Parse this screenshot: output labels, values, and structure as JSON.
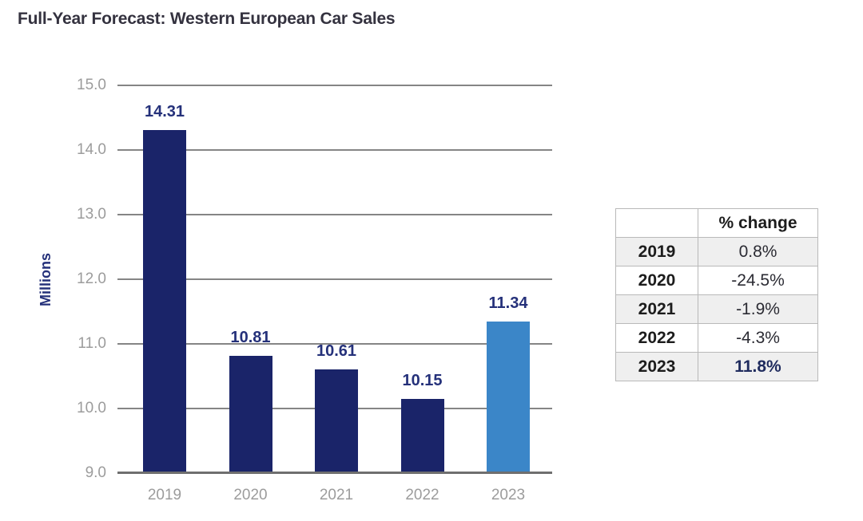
{
  "title": "Full-Year Forecast: Western European Car Sales",
  "chart_data": {
    "type": "bar",
    "title": "Full-Year Forecast: Western European Car Sales",
    "xlabel": "",
    "ylabel": "Millions",
    "categories": [
      "2019",
      "2020",
      "2021",
      "2022",
      "2023"
    ],
    "values": [
      14.31,
      10.81,
      10.61,
      10.15,
      11.34
    ],
    "bar_labels": [
      "14.31",
      "10.81",
      "10.61",
      "10.15",
      "11.34"
    ],
    "ylim": [
      9.0,
      15.0
    ],
    "ytick_labels": [
      "15.0",
      "14.0",
      "13.0",
      "12.0",
      "11.0",
      "10.0",
      "9.0"
    ],
    "yticks": [
      15.0,
      14.0,
      13.0,
      12.0,
      11.0,
      10.0,
      9.0
    ],
    "grid": true,
    "legend": "none",
    "bar_colors": [
      "#1A2469",
      "#1A2469",
      "#1A2469",
      "#1A2469",
      "#3B86C8"
    ]
  },
  "table": {
    "headers": [
      "",
      "% change"
    ],
    "rows": [
      {
        "year": "2019",
        "change": "0.8%",
        "shaded": true,
        "emphasis": false
      },
      {
        "year": "2020",
        "change": "-24.5%",
        "shaded": false,
        "emphasis": false
      },
      {
        "year": "2021",
        "change": "-1.9%",
        "shaded": true,
        "emphasis": false
      },
      {
        "year": "2022",
        "change": "-4.3%",
        "shaded": false,
        "emphasis": false
      },
      {
        "year": "2023",
        "change": "11.8%",
        "shaded": true,
        "emphasis": true
      }
    ]
  },
  "colors": {
    "bar_dark": "#1A2469",
    "bar_highlight": "#3B86C8",
    "value_label": "#25317A",
    "axis_title": "#25317A",
    "title_text": "#34323F",
    "gridline": "#858585",
    "axis_line": "#6F6F6F",
    "tick_text": "#9C9C9C",
    "table_border": "#B9B9B9",
    "table_shaded_row": "#EFEFEF",
    "table_emphasis_text": "#1F2B5E"
  }
}
